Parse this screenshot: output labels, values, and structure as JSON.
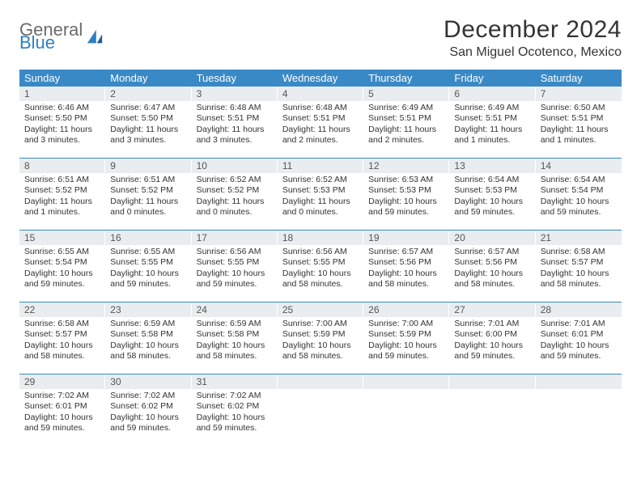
{
  "logo": {
    "top": "General",
    "bottom": "Blue"
  },
  "title": "December 2024",
  "location": "San Miguel Ocotenco, Mexico",
  "colors": {
    "header_bg": "#3a89c7",
    "daynum_bg": "#e9edef",
    "text": "#333333",
    "logo_gray": "#6b6b6b",
    "logo_blue": "#2f7fc0"
  },
  "dow": [
    "Sunday",
    "Monday",
    "Tuesday",
    "Wednesday",
    "Thursday",
    "Friday",
    "Saturday"
  ],
  "weeks": [
    [
      {
        "n": "1",
        "sr": "6:46 AM",
        "ss": "5:50 PM",
        "dh": "11",
        "dm": "3"
      },
      {
        "n": "2",
        "sr": "6:47 AM",
        "ss": "5:50 PM",
        "dh": "11",
        "dm": "3"
      },
      {
        "n": "3",
        "sr": "6:48 AM",
        "ss": "5:51 PM",
        "dh": "11",
        "dm": "3"
      },
      {
        "n": "4",
        "sr": "6:48 AM",
        "ss": "5:51 PM",
        "dh": "11",
        "dm": "2"
      },
      {
        "n": "5",
        "sr": "6:49 AM",
        "ss": "5:51 PM",
        "dh": "11",
        "dm": "2"
      },
      {
        "n": "6",
        "sr": "6:49 AM",
        "ss": "5:51 PM",
        "dh": "11",
        "dm": "1"
      },
      {
        "n": "7",
        "sr": "6:50 AM",
        "ss": "5:51 PM",
        "dh": "11",
        "dm": "1"
      }
    ],
    [
      {
        "n": "8",
        "sr": "6:51 AM",
        "ss": "5:52 PM",
        "dh": "11",
        "dm": "1"
      },
      {
        "n": "9",
        "sr": "6:51 AM",
        "ss": "5:52 PM",
        "dh": "11",
        "dm": "0"
      },
      {
        "n": "10",
        "sr": "6:52 AM",
        "ss": "5:52 PM",
        "dh": "11",
        "dm": "0"
      },
      {
        "n": "11",
        "sr": "6:52 AM",
        "ss": "5:53 PM",
        "dh": "11",
        "dm": "0"
      },
      {
        "n": "12",
        "sr": "6:53 AM",
        "ss": "5:53 PM",
        "dh": "10",
        "dm": "59"
      },
      {
        "n": "13",
        "sr": "6:54 AM",
        "ss": "5:53 PM",
        "dh": "10",
        "dm": "59"
      },
      {
        "n": "14",
        "sr": "6:54 AM",
        "ss": "5:54 PM",
        "dh": "10",
        "dm": "59"
      }
    ],
    [
      {
        "n": "15",
        "sr": "6:55 AM",
        "ss": "5:54 PM",
        "dh": "10",
        "dm": "59"
      },
      {
        "n": "16",
        "sr": "6:55 AM",
        "ss": "5:55 PM",
        "dh": "10",
        "dm": "59"
      },
      {
        "n": "17",
        "sr": "6:56 AM",
        "ss": "5:55 PM",
        "dh": "10",
        "dm": "59"
      },
      {
        "n": "18",
        "sr": "6:56 AM",
        "ss": "5:55 PM",
        "dh": "10",
        "dm": "58"
      },
      {
        "n": "19",
        "sr": "6:57 AM",
        "ss": "5:56 PM",
        "dh": "10",
        "dm": "58"
      },
      {
        "n": "20",
        "sr": "6:57 AM",
        "ss": "5:56 PM",
        "dh": "10",
        "dm": "58"
      },
      {
        "n": "21",
        "sr": "6:58 AM",
        "ss": "5:57 PM",
        "dh": "10",
        "dm": "58"
      }
    ],
    [
      {
        "n": "22",
        "sr": "6:58 AM",
        "ss": "5:57 PM",
        "dh": "10",
        "dm": "58"
      },
      {
        "n": "23",
        "sr": "6:59 AM",
        "ss": "5:58 PM",
        "dh": "10",
        "dm": "58"
      },
      {
        "n": "24",
        "sr": "6:59 AM",
        "ss": "5:58 PM",
        "dh": "10",
        "dm": "58"
      },
      {
        "n": "25",
        "sr": "7:00 AM",
        "ss": "5:59 PM",
        "dh": "10",
        "dm": "58"
      },
      {
        "n": "26",
        "sr": "7:00 AM",
        "ss": "5:59 PM",
        "dh": "10",
        "dm": "59"
      },
      {
        "n": "27",
        "sr": "7:01 AM",
        "ss": "6:00 PM",
        "dh": "10",
        "dm": "59"
      },
      {
        "n": "28",
        "sr": "7:01 AM",
        "ss": "6:01 PM",
        "dh": "10",
        "dm": "59"
      }
    ],
    [
      {
        "n": "29",
        "sr": "7:02 AM",
        "ss": "6:01 PM",
        "dh": "10",
        "dm": "59"
      },
      {
        "n": "30",
        "sr": "7:02 AM",
        "ss": "6:02 PM",
        "dh": "10",
        "dm": "59"
      },
      {
        "n": "31",
        "sr": "7:02 AM",
        "ss": "6:02 PM",
        "dh": "10",
        "dm": "59"
      },
      null,
      null,
      null,
      null
    ]
  ],
  "labels": {
    "sunrise": "Sunrise: ",
    "sunset": "Sunset: ",
    "daylight_pre": "Daylight: ",
    "hours": " hours",
    "and": "and ",
    "minutes": " minutes."
  }
}
